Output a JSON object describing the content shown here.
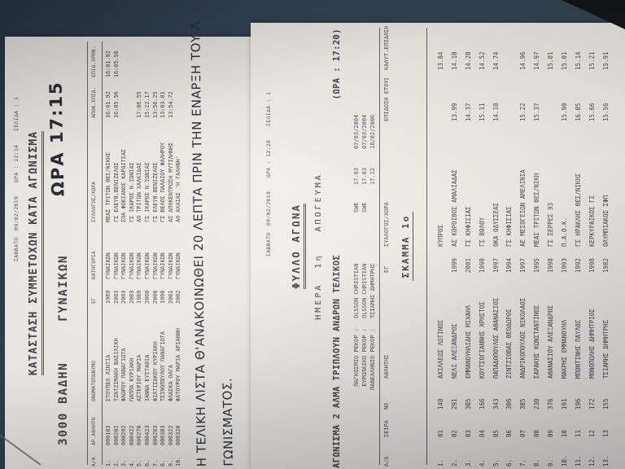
{
  "photo": {
    "background_color": "#2d3c4c",
    "paper_color": "#f3f0ea",
    "ink_color": "#413f46",
    "pen_color": "#22252e"
  },
  "page1": {
    "header": "ΣΑΒΒΑΤΟ  09/02/2019    ΩΡΑ : 12:14    ΣΕΛΙΔΑ : 1",
    "title": "ΚΑΤΑΣΤΑΣΗ ΣΥΜΜΕΤΟΧΩΝ ΚΑΤΑ ΑΓΩΝΙΣΜΑ",
    "event": "3000 ΒΑΔΗΝ",
    "event_category": "ΓΥΝΑΙΚΩΝ",
    "handwritten_time": "ΩΡΑ 17:15",
    "columns": {
      "aa": "Α/Α",
      "num": "ΑΡ.ΑΘΛΗΤΗ",
      "name": "ΟΝΟΜΑΤΕΠΩΝΥΜΟ",
      "year": "ΕΓ",
      "category": "ΚΑΤΗΓΟΡΙΑ",
      "club": "ΣΥΛΛΟΓΟΣ/ΧΩΡΑ",
      "perf1": "ΑΠΟΚ.ΕΠΙΔ.",
      "perf2": "ΕΠΙΔ.ΧΡΟΝ."
    },
    "rows": [
      {
        "aa": "1.",
        "num": "000183",
        "name": "ΣΤΟΥΠΕΛ ΛΙΝΤΙΑ",
        "year": "1989",
        "category": "ΓΥΝΑΙΚΩΝ",
        "club": "ΜΕΑΣ ΤΡΙΤΩΝ ΘΕΣ/ΝΙΚΗΣ",
        "perf1": "16:01.92",
        "perf2": "16:01.92"
      },
      {
        "aa": "2.",
        "num": "000202",
        "name": "ΤΖΑΤΖΙΜΑΚΗ ΒΑΣΙΛΙΚΗ",
        "year": "2003",
        "category": "ΓΥΝΑΙΚΩΝ",
        "club": "ΓΣ ΕΛΕΥΘ.ΒΕΝΙΖΕΛΟΣ",
        "perf1": "16:05.56",
        "perf2": "16:05.56"
      },
      {
        "aa": "3.",
        "num": "000292",
        "name": "ΦΛΩΡΟΥ ΠΑΝΑΓΙΩΤΑ",
        "year": "2003",
        "category": "ΓΥΝΑΙΚΩΝ",
        "club": "ΣΟΑ ΦΩΚΙΑΝΟΣ ΚΑΡΔΙΤΣΑΣ",
        "perf1": "",
        "perf2": ""
      },
      {
        "aa": "4.",
        "num": "000422",
        "name": "ΠΑΠΠΑ ΚΥΡΙΑΚΗ",
        "year": "2003",
        "category": "ΓΥΝΑΙΚΩΝ",
        "club": "ΓΣ ΙΚΑΡΟΣ Ν.ΙΩΝΙΑΣ",
        "perf1": "",
        "perf2": ""
      },
      {
        "aa": "5.",
        "num": "000270",
        "name": "ΑΣΤΕΡΙΟΥ ΜΑΡΙΑ",
        "year": "1989",
        "category": "ΓΥΝΑΙΚΩΝ",
        "club": "ΑΟ ΤΡΙΤΩΝ ΧΑΛΚΙΔΑΣ",
        "perf1": "17:06.55",
        "perf2": ""
      },
      {
        "aa": "6.",
        "num": "000423",
        "name": "ΙΑΝΝΑ ΕΥΣΤΑΘΙΑ",
        "year": "2000",
        "category": "ΓΥΝΑΙΚΩΝ",
        "club": "ΓΣ ΙΚΑΡΟΣ Ν.ΙΩΝΙΑΣ",
        "perf1": "15:22.17",
        "perf2": ""
      },
      {
        "aa": "7.",
        "num": "000203",
        "name": "ΦΙΛΤΙΣΑΚΟΥ ΚΥΡΙΑΚΗ",
        "year": "2000",
        "category": "ΓΥΝΑΙΚΩΝ",
        "club": "ΓΣ ΕΛΕΥΘ.ΒΕΝΙΖΕΛΟΣ",
        "perf1": "13:56.25",
        "perf2": ""
      },
      {
        "aa": "8.",
        "num": "000383",
        "name": "ΤΣΙΝΟΠΟΥΛΟΥ ΠΑΝΑΓΙΩΤΑ",
        "year": "1990",
        "category": "ΓΥΝΑΙΚΩΝ",
        "club": "ΓΣ ΒΕΛΟΣ ΠΑΛΑΙΟΥ ΦΑΛΗΡΟΥ",
        "perf1": "13:03.01",
        "perf2": ""
      },
      {
        "aa": "9.",
        "num": "000322",
        "name": "ΦΛΑΣΚΑ ΟΛΓΑ",
        "year": "2001",
        "category": "ΓΥΝΑΙΚΩΝ",
        "club": "ΑΣ ΑΠΟΚΕΝΤΡΩΣΗ ΜΥΤΙΛΗΝΗΣ",
        "perf1": "13:54.72",
        "perf2": ""
      },
      {
        "aa": "10.",
        "num": "000320",
        "name": "ΦΑΤΟΥΡΟΥ ΜΑΡΙΑ ΑΡΙΑΝΘΗ",
        "year": "2002",
        "category": "ΓΥΝΑΙΚΩΝ",
        "club": "ΑΟ ΑΧΑΙΑΣ 'Η ΓΑΛΗΝΗ'",
        "perf1": "",
        "perf2": ""
      }
    ],
    "note_line1": "Η ΤΕΛΙΚΗ ΛΙΣΤΑ Θ'ΑΝΑΚΟΙΝΩΘΕΙ 20 ΛΕΠΤΑ ΠΡΙΝ ΤΗΝ ΕΝΑΡΞΗ ΤΟΥ Α",
    "note_line2": "ΓΩΝΙΣΜΑΤΟΣ."
  },
  "page2": {
    "header": "ΣΑΒΒΑΤΟ  09/02/2019    ΩΡΑ : 12:28    ΣΕΛΙΔΑ : 1",
    "title": "ΦΥΛΛΟ ΑΓΩΝΑ",
    "session": "ΗΜΕΡΑ  1η   ΑΠΟΓΕΥΜΑ",
    "event": "ΑΓΩΝΙΣΜΑ 2 ΑΛΜΑ ΤΡΙΠΛΟΥΝ ΑΝΔΡΩΝ ΤΕΛΙΚΟΣ",
    "event_time": "(ΩΡΑ : 17:20)",
    "records": [
      {
        "label": "ΠΑΓΚΟΣΜΙΟ ΡΕΚΟΡ :",
        "name": "OLSSON CHRISTIAN",
        "country": "SWE",
        "mark": "17.83",
        "date": "07/03/2004"
      },
      {
        "label": "ΕΥΡΩΠΑΙΚΟ ΡΕΚΟΡ :",
        "name": "OLSSON CHRISTIAN",
        "country": "SWE",
        "mark": "17.83",
        "date": "07/03/2004"
      },
      {
        "label": "ΠΑΝΕΛΛΗΝΙΟ ΡΕΚΟΡ :",
        "name": "ΤΣΙΑΜΗΣ ΔΗΜΗΤΡΗΣ",
        "country": "",
        "mark": "17.12",
        "date": "18/02/2006"
      }
    ],
    "columns": {
      "aa": "Α/Α",
      "seira": "ΣΕΙΡΑ",
      "no": "NO",
      "name": "ΑΘΛΗΤΗΣ",
      "year": "ΕΓ",
      "club": "ΣΥΛΛΟΓΟΣ/ΧΩΡΑ",
      "season": "ΕΠΙΔΟΣΗ ΕΤΟΥΣ",
      "best": "ΚΑΛΥΤ.ΕΠΙΔΟΣΗ"
    },
    "section": "ΣΚΑΜΜΑ  1ο",
    "rows": [
      {
        "aa": "1.",
        "seira": "01",
        "no": "140",
        "name": "ΑΧΙΛΛΕΩΣ ΛΩΤΙΝΟΣ",
        "year": "",
        "club": "ΚΥΠΡΟΣ",
        "season": "",
        "best": "13.84"
      },
      {
        "aa": "2.",
        "seira": "02",
        "no": "291",
        "name": "ΝΕΛΙ ΑΛΕΞΑΝΔΡΟΣ",
        "year": "1999",
        "club": "ΑΣ ΚΟΡΟΙΒΟΣ ΑΜΑΛΙΑΔΑΣ",
        "season": "13.99",
        "best": "14.10"
      },
      {
        "aa": "3.",
        "seira": "03",
        "no": "305",
        "name": "ΕΜΜΑΝΟΥΗΛΙΔΗΣ ΜΙΧΑΗΛ",
        "year": "2001",
        "club": "ΓΣ ΚΗΦΙΣΙΑΣ",
        "season": "14.37",
        "best": "14.20"
      },
      {
        "aa": "4.",
        "seira": "04",
        "no": "166",
        "name": "ΚΟΥΤΣΟΓΙΑΝΝΗΣ ΧΡΗΣΤΟΣ",
        "year": "1998",
        "club": "ΓΣ ΒΟΛΟΥ",
        "season": "15.11",
        "best": "14.52"
      },
      {
        "aa": "5.",
        "seira": "05",
        "no": "343",
        "name": "ΠΑΠΑΔΟΠΟΥΛΟΣ ΑΘΑΝΑΣΙΟΣ",
        "year": "1997",
        "club": "ΟΚΑ ΟΔΥΣΣΕΑΣ",
        "season": "14.10",
        "best": "14.74"
      },
      {
        "aa": "6.",
        "seira": "06",
        "no": "306",
        "name": "ΖΙΝΤΖΙΟΒΑΣ ΘΕΟΔΩΡΟΣ",
        "year": "1994",
        "club": "ΓΣ ΚΗΦΙΣΙΑΣ",
        "season": "",
        "best": ""
      },
      {
        "aa": "7.",
        "seira": "07",
        "no": "385",
        "name": "ΑΝΔΡΙΚΟΠΟΥΛΟΣ ΝΙΚΟΛΑΟΣ",
        "year": "1997",
        "club": "ΑΕ ΜΕΣΟΓΕΙΩΝ ΑΜΕΛΙΝΙΑ",
        "season": "15.22",
        "best": "14.96"
      },
      {
        "aa": "8.",
        "seira": "08",
        "no": "230",
        "name": "ΣΑΡΑΚΗΣ ΚΩΝΣΤΑΝΤΙΝΟΣ",
        "year": "1995",
        "club": "ΜΕΑΣ ΤΡΙΤΩΝ ΘΕΣ/ΝΙΚΗ",
        "season": "15.37",
        "best": "14.97"
      },
      {
        "aa": "9.",
        "seira": "09",
        "no": "376",
        "name": "ΑΘΑΝΑΣΙΟΥ ΑΛΕΞΑΝΔΡΟΣ",
        "year": "1998",
        "club": "ΓΣ ΣΕΡΡΕΣ 93",
        "season": "",
        "best": "15.01"
      },
      {
        "aa": "10.",
        "seira": "10",
        "no": "191",
        "name": "ΜΑΚΡΗΣ ΕΜΜΑΝΟΥΗΛ",
        "year": "1993",
        "club": "Π.Α.Ο.Κ.",
        "season": "15.90",
        "best": "15.01"
      },
      {
        "aa": "11.",
        "seira": "11",
        "no": "196",
        "name": "ΜΠΟΝΤΙΝΗΣ ΠΑΥΛΟΣ",
        "year": "1992",
        "club": "ΓΣ ΗΡΑΚΛΗΣ ΘΕΣ/ΝΙΚΗΣ",
        "season": "16.05",
        "best": "15.14"
      },
      {
        "aa": "12.",
        "seira": "12",
        "no": "172",
        "name": "ΜΟΝΟΠΩΛΗΣ ΔΗΜΗΤΡΙΟΣ",
        "year": "1998",
        "club": "ΚΕΡΚΥΡΑΙΚΟΣ ΓΣ",
        "season": "15.66",
        "best": "15.21"
      },
      {
        "aa": "13.",
        "seira": "13",
        "no": "155",
        "name": "ΤΣΙΑΜΗΣ ΔΗΜΗΤΡΗΣ",
        "year": "1982",
        "club": "ΟΛΥΜΠΙΑΚΟΣ ΣΦΠ",
        "season": "15.56",
        "best": "15.91"
      }
    ]
  }
}
